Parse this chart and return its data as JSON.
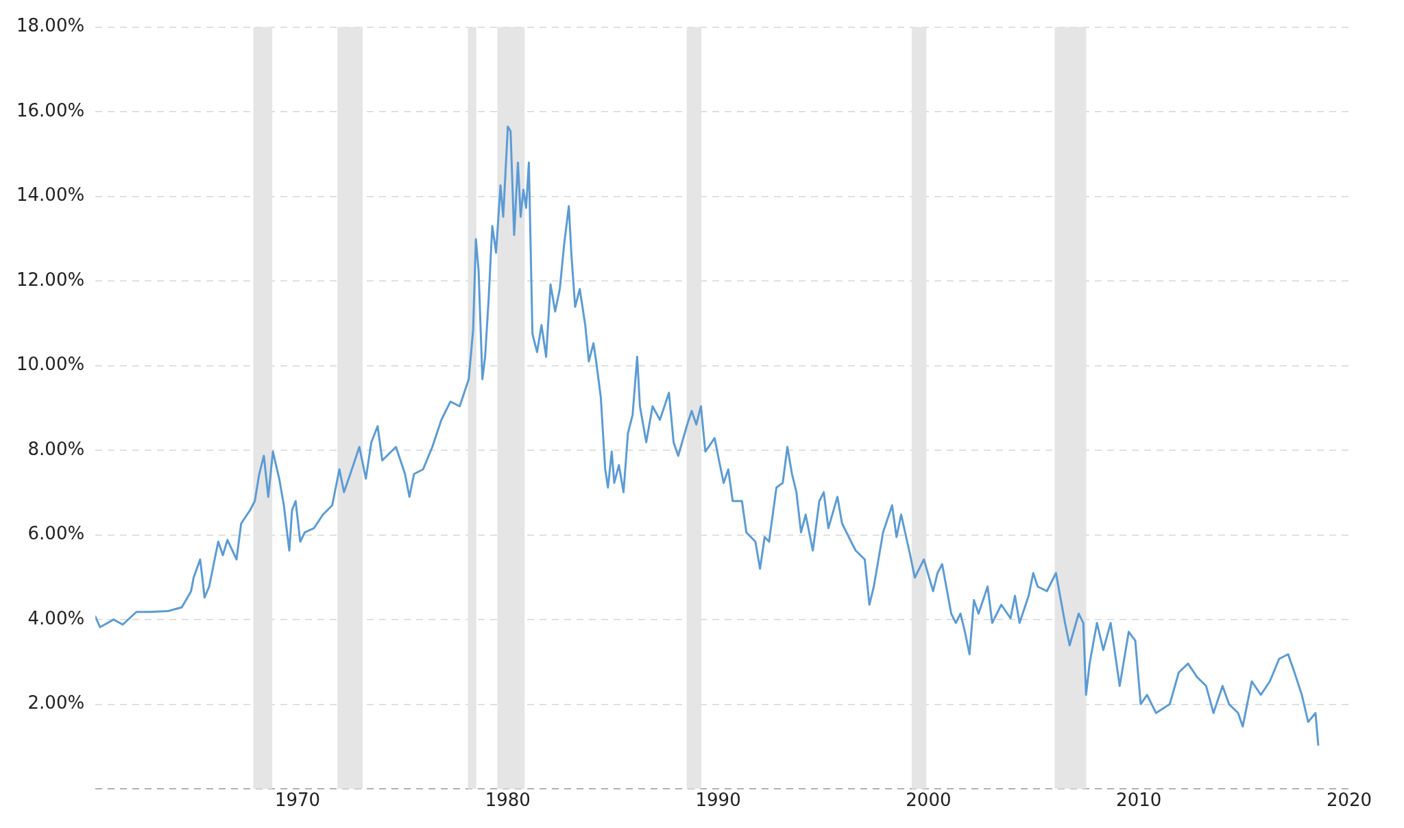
{
  "chart_data": {
    "type": "line",
    "marker": "none",
    "line_style": "solid",
    "grid": "y",
    "legend": false,
    "xlim": [
      1960.39,
      2020
    ],
    "xticks": [
      1970,
      1980,
      1990,
      2000,
      2010,
      2020
    ],
    "ylim": [
      0,
      18
    ],
    "yticks": [
      {
        "value": 0,
        "label": null
      },
      {
        "value": 2,
        "label": "2.00%"
      },
      {
        "value": 4,
        "label": "4.00%"
      },
      {
        "value": 6,
        "label": "6.00%"
      },
      {
        "value": 8,
        "label": "8.00%"
      },
      {
        "value": 10,
        "label": "10.00%"
      },
      {
        "value": 12,
        "label": "12.00%"
      },
      {
        "value": 14,
        "label": "14.00%"
      },
      {
        "value": 16,
        "label": "16.00%"
      },
      {
        "value": 18,
        "label": "18.00%"
      }
    ],
    "bands": [
      {
        "axis": "x",
        "from": 1967.9,
        "to": 1968.8,
        "color": "#e5e5e5"
      },
      {
        "axis": "x",
        "from": 1971.9,
        "to": 1973.1,
        "color": "#e5e5e5"
      },
      {
        "axis": "x",
        "from": 1978.1,
        "to": 1978.5,
        "color": "#e5e5e5"
      },
      {
        "axis": "x",
        "from": 1979.5,
        "to": 1980.8,
        "color": "#e5e5e5"
      },
      {
        "axis": "x",
        "from": 1988.5,
        "to": 1989.2,
        "color": "#e5e5e5"
      },
      {
        "axis": "x",
        "from": 1999.2,
        "to": 1999.9,
        "color": "#e5e5e5"
      },
      {
        "axis": "x",
        "from": 2006.0,
        "to": 2007.5,
        "color": "#e5e5e5"
      }
    ],
    "series": [
      {
        "color": "#5b9bd5",
        "x": [
          1960.39,
          1960.61,
          1961.26,
          1961.69,
          1962.34,
          1962.99,
          1963.85,
          1964.5,
          1964.94,
          1965.06,
          1965.37,
          1965.5,
          1965.58,
          1965.8,
          1966.23,
          1966.45,
          1966.67,
          1967.1,
          1967.32,
          1967.75,
          1967.97,
          1968.18,
          1968.4,
          1968.61,
          1968.83,
          1969.13,
          1969.35,
          1969.48,
          1969.61,
          1969.74,
          1969.91,
          1970.13,
          1970.35,
          1970.78,
          1971.21,
          1971.65,
          1971.99,
          1972.21,
          1972.51,
          1972.94,
          1973.25,
          1973.51,
          1973.81,
          1974.03,
          1974.68,
          1975.11,
          1975.32,
          1975.54,
          1975.97,
          1976.41,
          1976.84,
          1977.27,
          1977.71,
          1978.14,
          1978.35,
          1978.48,
          1978.61,
          1978.79,
          1978.92,
          1979.09,
          1979.26,
          1979.44,
          1979.65,
          1979.78,
          1980.0,
          1980.13,
          1980.3,
          1980.48,
          1980.61,
          1980.74,
          1980.87,
          1981.0,
          1981.17,
          1981.39,
          1981.6,
          1981.82,
          1982.03,
          1982.25,
          1982.47,
          1982.68,
          1982.9,
          1983.03,
          1983.2,
          1983.42,
          1983.68,
          1983.85,
          1984.07,
          1984.2,
          1984.42,
          1984.63,
          1984.76,
          1984.94,
          1985.06,
          1985.28,
          1985.5,
          1985.71,
          1985.93,
          1986.15,
          1986.28,
          1986.58,
          1986.88,
          1987.23,
          1987.66,
          1987.88,
          1988.1,
          1988.53,
          1988.74,
          1988.96,
          1989.18,
          1989.39,
          1989.83,
          1990.04,
          1990.26,
          1990.48,
          1990.69,
          1991.13,
          1991.34,
          1991.77,
          1991.99,
          1992.21,
          1992.42,
          1992.77,
          1993.07,
          1993.29,
          1993.51,
          1993.72,
          1993.94,
          1994.16,
          1994.5,
          1994.81,
          1995.02,
          1995.24,
          1995.67,
          1995.89,
          1996.32,
          1996.54,
          1996.97,
          1997.19,
          1997.4,
          1997.84,
          1998.27,
          1998.48,
          1998.7,
          1999.13,
          1999.35,
          1999.78,
          2000.22,
          2000.43,
          2000.65,
          2001.08,
          2001.3,
          2001.52,
          2001.73,
          2001.95,
          2002.16,
          2002.38,
          2002.81,
          2003.03,
          2003.46,
          2003.9,
          2004.11,
          2004.33,
          2004.76,
          2004.98,
          2005.19,
          2005.63,
          2006.06,
          2006.49,
          2006.71,
          2007.14,
          2007.36,
          2007.49,
          2007.66,
          2008.01,
          2008.31,
          2008.66,
          2009.09,
          2009.52,
          2009.83,
          2010.09,
          2010.39,
          2010.82,
          2011.47,
          2011.9,
          2012.34,
          2012.77,
          2013.2,
          2013.55,
          2013.98,
          2014.29,
          2014.72,
          2014.94,
          2015.37,
          2015.8,
          2016.23,
          2016.67,
          2017.1,
          2017.4,
          2017.75,
          2018.05,
          2018.4,
          2018.53
        ],
        "values": [
          4.07,
          3.82,
          4.0,
          3.88,
          4.18,
          4.18,
          4.2,
          4.29,
          4.67,
          4.99,
          5.42,
          4.88,
          4.52,
          4.78,
          5.84,
          5.52,
          5.88,
          5.42,
          6.27,
          6.59,
          6.8,
          7.44,
          7.87,
          6.9,
          7.97,
          7.33,
          6.7,
          6.16,
          5.63,
          6.59,
          6.8,
          5.84,
          6.06,
          6.16,
          6.48,
          6.7,
          7.55,
          7.01,
          7.44,
          8.08,
          7.33,
          8.19,
          8.57,
          7.76,
          8.08,
          7.44,
          6.9,
          7.44,
          7.55,
          8.08,
          8.72,
          9.15,
          9.04,
          9.68,
          10.85,
          12.99,
          12.24,
          9.68,
          10.21,
          11.6,
          13.3,
          12.67,
          14.26,
          13.52,
          15.65,
          15.54,
          13.09,
          14.8,
          13.52,
          14.16,
          13.73,
          14.8,
          10.75,
          10.32,
          10.96,
          10.21,
          11.92,
          11.28,
          11.81,
          12.88,
          13.77,
          12.56,
          11.39,
          11.81,
          10.96,
          10.1,
          10.53,
          10.1,
          9.25,
          7.55,
          7.12,
          7.97,
          7.23,
          7.65,
          7.01,
          8.4,
          8.83,
          10.21,
          9.04,
          8.19,
          9.04,
          8.72,
          9.36,
          8.19,
          7.87,
          8.61,
          8.93,
          8.61,
          9.04,
          7.97,
          8.29,
          7.76,
          7.23,
          7.55,
          6.8,
          6.8,
          6.06,
          5.84,
          5.2,
          5.95,
          5.84,
          7.12,
          7.23,
          8.08,
          7.44,
          7.01,
          6.06,
          6.48,
          5.63,
          6.8,
          7.01,
          6.16,
          6.9,
          6.27,
          5.84,
          5.63,
          5.42,
          4.35,
          4.78,
          6.06,
          6.7,
          5.95,
          6.48,
          5.52,
          4.99,
          5.42,
          4.67,
          5.1,
          5.31,
          4.14,
          3.92,
          4.14,
          3.71,
          3.18,
          4.46,
          4.14,
          4.78,
          3.92,
          4.35,
          4.03,
          4.56,
          3.92,
          4.56,
          5.1,
          4.78,
          4.67,
          5.1,
          3.92,
          3.39,
          4.14,
          3.92,
          2.22,
          2.96,
          3.92,
          3.28,
          3.92,
          2.43,
          3.71,
          3.5,
          2.0,
          2.22,
          1.79,
          2.0,
          2.75,
          2.96,
          2.64,
          2.43,
          1.79,
          2.43,
          2.0,
          1.79,
          1.47,
          2.54,
          2.22,
          2.54,
          3.07,
          3.18,
          2.75,
          2.22,
          1.58,
          1.79,
          1.04
        ]
      }
    ]
  }
}
